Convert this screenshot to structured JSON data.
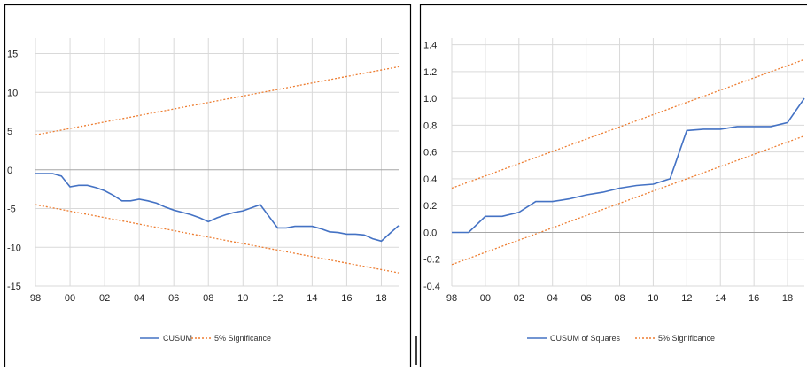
{
  "chart_data": [
    {
      "type": "line",
      "x_ticks": [
        "98",
        "00",
        "02",
        "04",
        "06",
        "08",
        "10",
        "12",
        "14",
        "16",
        "18"
      ],
      "y_ticks": [
        "15",
        "10",
        "5",
        "0",
        "-5",
        "-10",
        "-15"
      ],
      "ylim": [
        -15,
        17
      ],
      "x_range": [
        1998,
        2019
      ],
      "grid": true,
      "legend_position": "bottom",
      "series": [
        {
          "name": "CUSUM",
          "color": "#4472C4",
          "style": "solid",
          "x": [
            1998,
            1999,
            1999.5,
            2000,
            2000.5,
            2001,
            2001.5,
            2002,
            2002.5,
            2003,
            2003.5,
            2004,
            2004.5,
            2005,
            2005.5,
            2006,
            2006.5,
            2007,
            2007.5,
            2008,
            2008.5,
            2009,
            2009.5,
            2010,
            2010.5,
            2011,
            2011.5,
            2012,
            2012.5,
            2013,
            2013.5,
            2014,
            2014.5,
            2015,
            2015.5,
            2016,
            2016.5,
            2017,
            2017.5,
            2018,
            2018.5,
            2019
          ],
          "y": [
            -0.5,
            -0.5,
            -0.8,
            -2.2,
            -2.0,
            -2.0,
            -2.3,
            -2.7,
            -3.3,
            -4.0,
            -4.0,
            -3.8,
            -4.0,
            -4.3,
            -4.8,
            -5.2,
            -5.5,
            -5.8,
            -6.2,
            -6.7,
            -6.2,
            -5.8,
            -5.5,
            -5.3,
            -4.9,
            -4.5,
            -6.0,
            -7.5,
            -7.5,
            -7.3,
            -7.3,
            -7.3,
            -7.6,
            -8.0,
            -8.1,
            -8.3,
            -8.3,
            -8.4,
            -8.9,
            -9.2,
            -8.2,
            -7.2
          ]
        },
        {
          "name": "5% Significance",
          "color": "#ED7D31",
          "style": "dotted",
          "x": [
            1998,
            2019
          ],
          "y": [
            4.5,
            13.3
          ]
        },
        {
          "name": "5% Significance",
          "color": "#ED7D31",
          "style": "dotted",
          "x": [
            1998,
            2019
          ],
          "y": [
            -4.5,
            -13.3
          ]
        }
      ],
      "legend": [
        {
          "label": "CUSUM",
          "color": "#4472C4",
          "style": "solid"
        },
        {
          "label": "5% Significance",
          "color": "#ED7D31",
          "style": "dotted"
        }
      ]
    },
    {
      "type": "line",
      "x_ticks": [
        "98",
        "00",
        "02",
        "04",
        "06",
        "08",
        "10",
        "12",
        "14",
        "16",
        "18"
      ],
      "y_ticks": [
        "1.4",
        "1.2",
        "1.0",
        "0.8",
        "0.6",
        "0.4",
        "0.2",
        "0.0",
        "-0.2",
        "-0.4"
      ],
      "ylim": [
        -0.4,
        1.45
      ],
      "x_range": [
        1998,
        2019
      ],
      "grid": true,
      "legend_position": "bottom",
      "series": [
        {
          "name": "CUSUM of Squares",
          "color": "#4472C4",
          "style": "solid",
          "x": [
            1998,
            1999,
            2000,
            2001,
            2002,
            2003,
            2004,
            2005,
            2006,
            2007,
            2008,
            2009,
            2010,
            2011,
            2012,
            2013,
            2014,
            2015,
            2016,
            2017,
            2018,
            2019
          ],
          "y": [
            0.0,
            0.0,
            0.12,
            0.12,
            0.15,
            0.23,
            0.23,
            0.25,
            0.28,
            0.3,
            0.33,
            0.35,
            0.36,
            0.4,
            0.76,
            0.77,
            0.77,
            0.79,
            0.79,
            0.79,
            0.82,
            1.0
          ]
        },
        {
          "name": "5% Significance",
          "color": "#ED7D31",
          "style": "dotted",
          "x": [
            1998,
            2019
          ],
          "y": [
            0.33,
            1.29
          ]
        },
        {
          "name": "5% Significance",
          "color": "#ED7D31",
          "style": "dotted",
          "x": [
            1998,
            2019
          ],
          "y": [
            -0.24,
            0.72
          ]
        }
      ],
      "legend": [
        {
          "label": "CUSUM of Squares",
          "color": "#4472C4",
          "style": "solid"
        },
        {
          "label": "5% Significance",
          "color": "#ED7D31",
          "style": "dotted"
        }
      ]
    }
  ]
}
